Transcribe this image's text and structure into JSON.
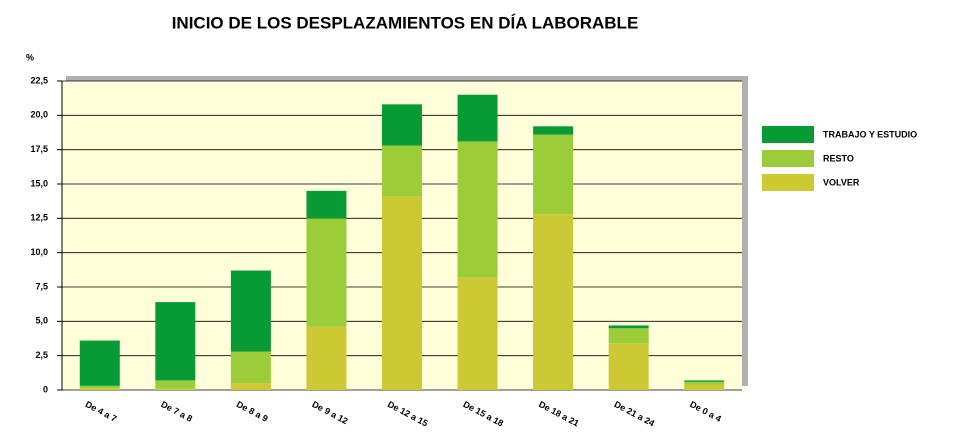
{
  "chart_data": {
    "type": "stacked_bar",
    "title": "INICIO DE LOS DESPLAZAMIENTOS EN DÍA LABORABLE",
    "y_label": "%",
    "categories": [
      "De 4 a 7",
      "De 7 a 8",
      "De 8 a 9",
      "De 9 a 12",
      "De 12 a 15",
      "De 15 a 18",
      "De 18 a 21",
      "De 21 a 24",
      "De 0 a 4"
    ],
    "series": [
      {
        "name": "TRABAJO Y ESTUDIO",
        "color": "#079a35",
        "values": [
          3.3,
          5.7,
          5.9,
          2.0,
          3.0,
          3.4,
          0.6,
          0.2,
          0.1
        ]
      },
      {
        "name": "RESTO",
        "color": "#9bcc3a",
        "values": [
          0.2,
          0.6,
          2.3,
          7.9,
          3.7,
          9.9,
          5.8,
          1.1,
          0.2
        ]
      },
      {
        "name": "VOLVER",
        "color": "#cdc934",
        "values": [
          0.1,
          0.1,
          0.5,
          4.6,
          14.1,
          8.2,
          12.8,
          3.4,
          0.4
        ]
      }
    ],
    "ylim": [
      0,
      22.5
    ],
    "yticks": [
      0,
      {
        "value": 2.5,
        "label": "2,5"
      },
      {
        "value": 5,
        "label": "5,0"
      },
      {
        "value": 7.5,
        "label": "7,5"
      },
      {
        "value": 10,
        "label": "10,0"
      },
      {
        "value": 12.5,
        "label": "12,5"
      },
      {
        "value": 15,
        "label": "15,0"
      },
      {
        "value": 17.5,
        "label": "17,5"
      },
      {
        "value": 20,
        "label": "20,0"
      },
      {
        "value": 22.5,
        "label": "22,5"
      }
    ],
    "grid": true,
    "legend": "right"
  }
}
